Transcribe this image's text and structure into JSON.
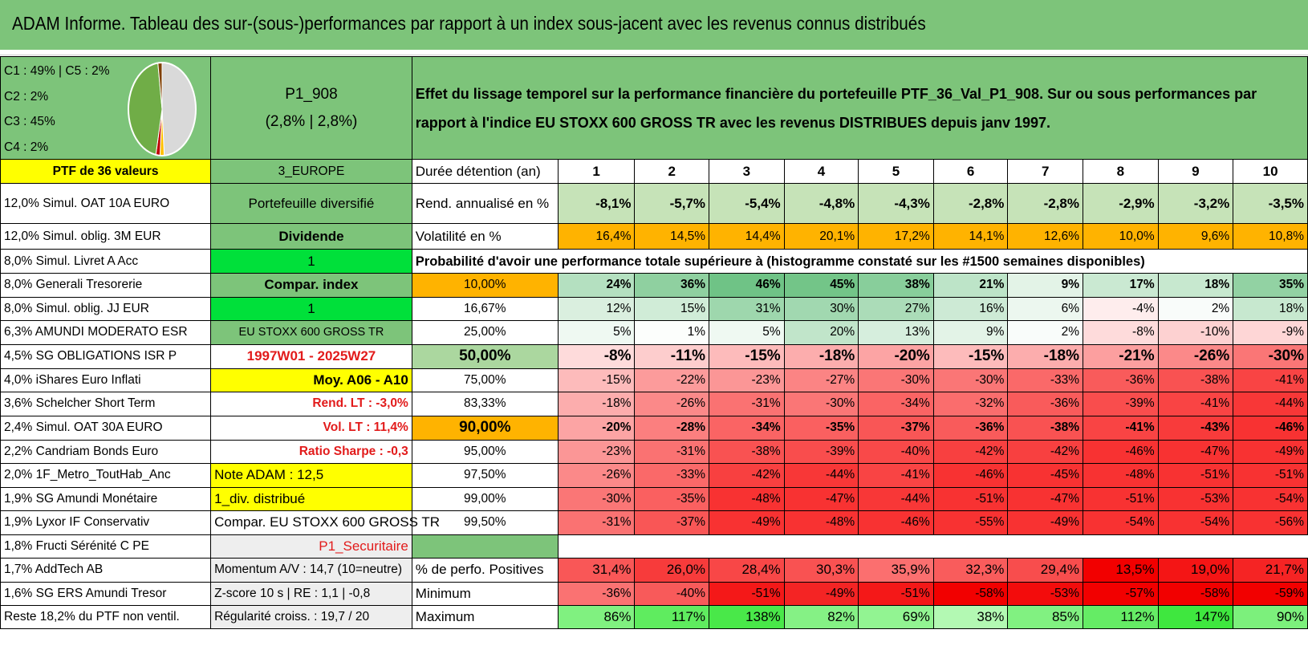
{
  "title": "ADAM Informe. Tableau des sur-(sous-)performances par rapport à un index sous-jacent avec les revenus connus distribués",
  "pie": {
    "legend_lines": [
      "C1 : 49% | C5 : 2%",
      "C2 : 2%",
      "C3 : 45%",
      "C4 : 2%"
    ],
    "slices": [
      {
        "label": "C1",
        "percent": 49,
        "color": "#d9d9d9"
      },
      {
        "label": "C5",
        "percent": 2,
        "color": "#ffc000"
      },
      {
        "label": "C2",
        "percent": 2,
        "color": "#c00000"
      },
      {
        "label": "C3",
        "percent": 45,
        "color": "#70ad47"
      },
      {
        "label": "C4",
        "percent": 2,
        "color": "#7f3f00"
      }
    ]
  },
  "portfolio": {
    "name": "P1_908",
    "perf": "(2,8% | 2,8%)",
    "description": "Effet du lissage temporel sur la performance financière du portefeuille PTF_36_Val_P1_908. Sur ou sous performances par rapport à l'indice EU STOXX 600 GROSS TR avec les revenus DISTRIBUES depuis janv 1997.",
    "count_label": "PTF de 36 valeurs",
    "zone": "3_EUROPE"
  },
  "holdings": [
    "12,0% Simul. OAT 10A EURO",
    "12,0% Simul. oblig. 3M EUR",
    "8,0% Simul. Livret A Acc",
    "8,0% Generali Tresorerie",
    "8,0% Simul. oblig. JJ EUR",
    "6,3% AMUNDI MODERATO ESR",
    "4,5% SG OBLIGATIONS ISR P",
    "4,0% iShares Euro Inflati",
    "3,6% Schelcher Short Term",
    "2,4% Simul. OAT 30A EURO",
    "2,2% Candriam Bonds Euro",
    "2,0% 1F_Metro_ToutHab_Anc",
    "1,9% SG Amundi Monétaire",
    "1,9% Lyxor IF Conservativ",
    "1,8% Fructi Sérénité C PE",
    "1,7% AddTech AB",
    "1,6% SG ERS Amundi Tresor",
    "Reste 18,2% du PTF non ventil."
  ],
  "info": [
    "Portefeuille diversifié",
    "Dividende",
    "1",
    "Compar. index",
    "1",
    "EU STOXX 600 GROSS TR",
    "1997W01 - 2025W27",
    "Moy. A06 - A10",
    "Rend. LT : -3,0%",
    "Vol. LT : 11,4%",
    "Ratio Sharpe : -0,3",
    "Note ADAM : 12,5",
    "1_div. distribué",
    "Compar. EU STOXX 600 GROSS TR",
    "P1_Securitaire",
    "Momentum A/V : 14,7 (10=neutre)",
    "Z-score 10 s | RE : 1,1 | -0,8",
    "Régularité croiss. : 19,7 / 20"
  ],
  "table": {
    "period_header": "Durée détention (an)",
    "periods": [
      "1",
      "2",
      "3",
      "4",
      "5",
      "6",
      "7",
      "8",
      "9",
      "10"
    ],
    "rend_label": "Rend. annualisé en %",
    "rend": [
      "-8,1%",
      "-5,7%",
      "-5,4%",
      "-4,8%",
      "-4,3%",
      "-2,8%",
      "-2,8%",
      "-2,9%",
      "-3,2%",
      "-3,5%"
    ],
    "vol_label": "Volatilité en %",
    "vol": [
      "16,4%",
      "14,5%",
      "14,4%",
      "20,1%",
      "17,2%",
      "14,1%",
      "12,6%",
      "10,0%",
      "9,6%",
      "10,8%"
    ],
    "prob_title": "Probabilité d'avoir une performance totale supérieure à (histogramme constaté sur les #1500 semaines disponibles)",
    "prob_rows": [
      {
        "p": "10,00%",
        "v": [
          "24%",
          "36%",
          "46%",
          "45%",
          "38%",
          "21%",
          "9%",
          "17%",
          "18%",
          "35%"
        ]
      },
      {
        "p": "16,67%",
        "v": [
          "12%",
          "15%",
          "31%",
          "30%",
          "27%",
          "16%",
          "6%",
          "-4%",
          "2%",
          "18%"
        ]
      },
      {
        "p": "25,00%",
        "v": [
          "5%",
          "1%",
          "5%",
          "20%",
          "13%",
          "9%",
          "2%",
          "-8%",
          "-10%",
          "-9%"
        ]
      },
      {
        "p": "50,00%",
        "v": [
          "-8%",
          "-11%",
          "-15%",
          "-18%",
          "-20%",
          "-15%",
          "-18%",
          "-21%",
          "-26%",
          "-30%"
        ]
      },
      {
        "p": "75,00%",
        "v": [
          "-15%",
          "-22%",
          "-23%",
          "-27%",
          "-30%",
          "-30%",
          "-33%",
          "-36%",
          "-38%",
          "-41%"
        ]
      },
      {
        "p": "83,33%",
        "v": [
          "-18%",
          "-26%",
          "-31%",
          "-30%",
          "-34%",
          "-32%",
          "-36%",
          "-39%",
          "-41%",
          "-44%"
        ]
      },
      {
        "p": "90,00%",
        "v": [
          "-20%",
          "-28%",
          "-34%",
          "-35%",
          "-37%",
          "-36%",
          "-38%",
          "-41%",
          "-43%",
          "-46%"
        ]
      },
      {
        "p": "95,00%",
        "v": [
          "-23%",
          "-31%",
          "-38%",
          "-39%",
          "-40%",
          "-42%",
          "-42%",
          "-46%",
          "-47%",
          "-49%"
        ]
      },
      {
        "p": "97,50%",
        "v": [
          "-26%",
          "-33%",
          "-42%",
          "-44%",
          "-41%",
          "-46%",
          "-45%",
          "-48%",
          "-51%",
          "-51%"
        ]
      },
      {
        "p": "99,00%",
        "v": [
          "-30%",
          "-35%",
          "-48%",
          "-47%",
          "-44%",
          "-51%",
          "-47%",
          "-51%",
          "-53%",
          "-54%"
        ]
      },
      {
        "p": "99,50%",
        "v": [
          "-31%",
          "-37%",
          "-49%",
          "-48%",
          "-46%",
          "-55%",
          "-49%",
          "-54%",
          "-54%",
          "-56%"
        ]
      }
    ],
    "pos_label": "% de perfo. Positives",
    "pos": [
      "31,4%",
      "26,0%",
      "28,4%",
      "30,3%",
      "35,9%",
      "32,3%",
      "29,4%",
      "13,5%",
      "19,0%",
      "21,7%"
    ],
    "min_label": "Minimum",
    "min": [
      "-36%",
      "-40%",
      "-51%",
      "-49%",
      "-51%",
      "-58%",
      "-53%",
      "-57%",
      "-58%",
      "-59%"
    ],
    "max_label": "Maximum",
    "max": [
      "86%",
      "117%",
      "138%",
      "82%",
      "69%",
      "38%",
      "85%",
      "112%",
      "147%",
      "90%"
    ]
  },
  "colors": {
    "header_green": "#7dc47a",
    "yellow": "#ffff00",
    "orange": "#ffb300",
    "bright_green": "#00e03a",
    "red_text": "#e21b1b"
  }
}
